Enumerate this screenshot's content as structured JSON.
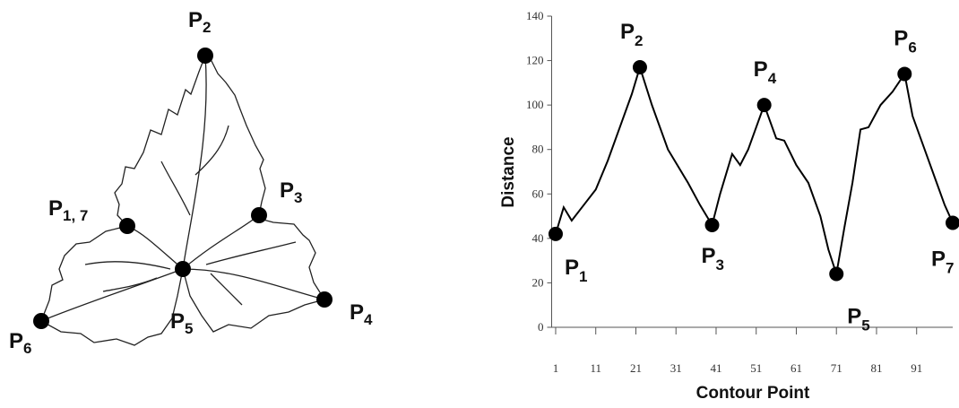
{
  "diagram": {
    "points": [
      {
        "text": "P",
        "sub": "2"
      },
      {
        "text": "P",
        "sub": "3"
      },
      {
        "text": "P",
        "sub": "1, 7"
      },
      {
        "text": "P",
        "sub": "4"
      },
      {
        "text": "P",
        "sub": "5"
      },
      {
        "text": "P",
        "sub": "6"
      }
    ]
  },
  "chart_data": {
    "type": "line",
    "y_label": "Distance",
    "x_label": "Contour Point",
    "x": [
      1,
      3,
      5,
      8,
      11,
      14,
      17,
      20,
      22,
      25,
      29,
      34,
      37,
      40,
      42,
      45,
      47,
      49,
      51,
      53,
      56,
      58,
      61,
      64,
      67,
      69,
      71,
      73,
      75,
      77,
      79,
      82,
      85,
      88,
      90,
      93,
      96,
      98,
      100
    ],
    "y": [
      42,
      54,
      48,
      55,
      62,
      75,
      90,
      105,
      117,
      100,
      80,
      65,
      55,
      46,
      60,
      78,
      73,
      80,
      90,
      100,
      85,
      84,
      73,
      65,
      50,
      35,
      24,
      45,
      65,
      89,
      90,
      100,
      106,
      114,
      95,
      80,
      65,
      55,
      47
    ],
    "color": "#000000",
    "xlim": [
      0,
      100
    ],
    "xticks": [
      1,
      11,
      21,
      31,
      41,
      51,
      61,
      71,
      81,
      91
    ],
    "ylim": [
      0,
      140
    ],
    "yticks": [
      0,
      20,
      40,
      60,
      80,
      100,
      120,
      140
    ],
    "annotations": [
      {
        "text": "P",
        "sub": "1",
        "x": 1,
        "y": 42
      },
      {
        "text": "P",
        "sub": "2",
        "x": 22,
        "y": 117
      },
      {
        "text": "P",
        "sub": "3",
        "x": 40,
        "y": 46
      },
      {
        "text": "P",
        "sub": "4",
        "x": 53,
        "y": 100
      },
      {
        "text": "P",
        "sub": "5",
        "x": 71,
        "y": 24
      },
      {
        "text": "P",
        "sub": "6",
        "x": 88,
        "y": 114
      },
      {
        "text": "P",
        "sub": "7",
        "x": 100,
        "y": 47
      }
    ]
  }
}
